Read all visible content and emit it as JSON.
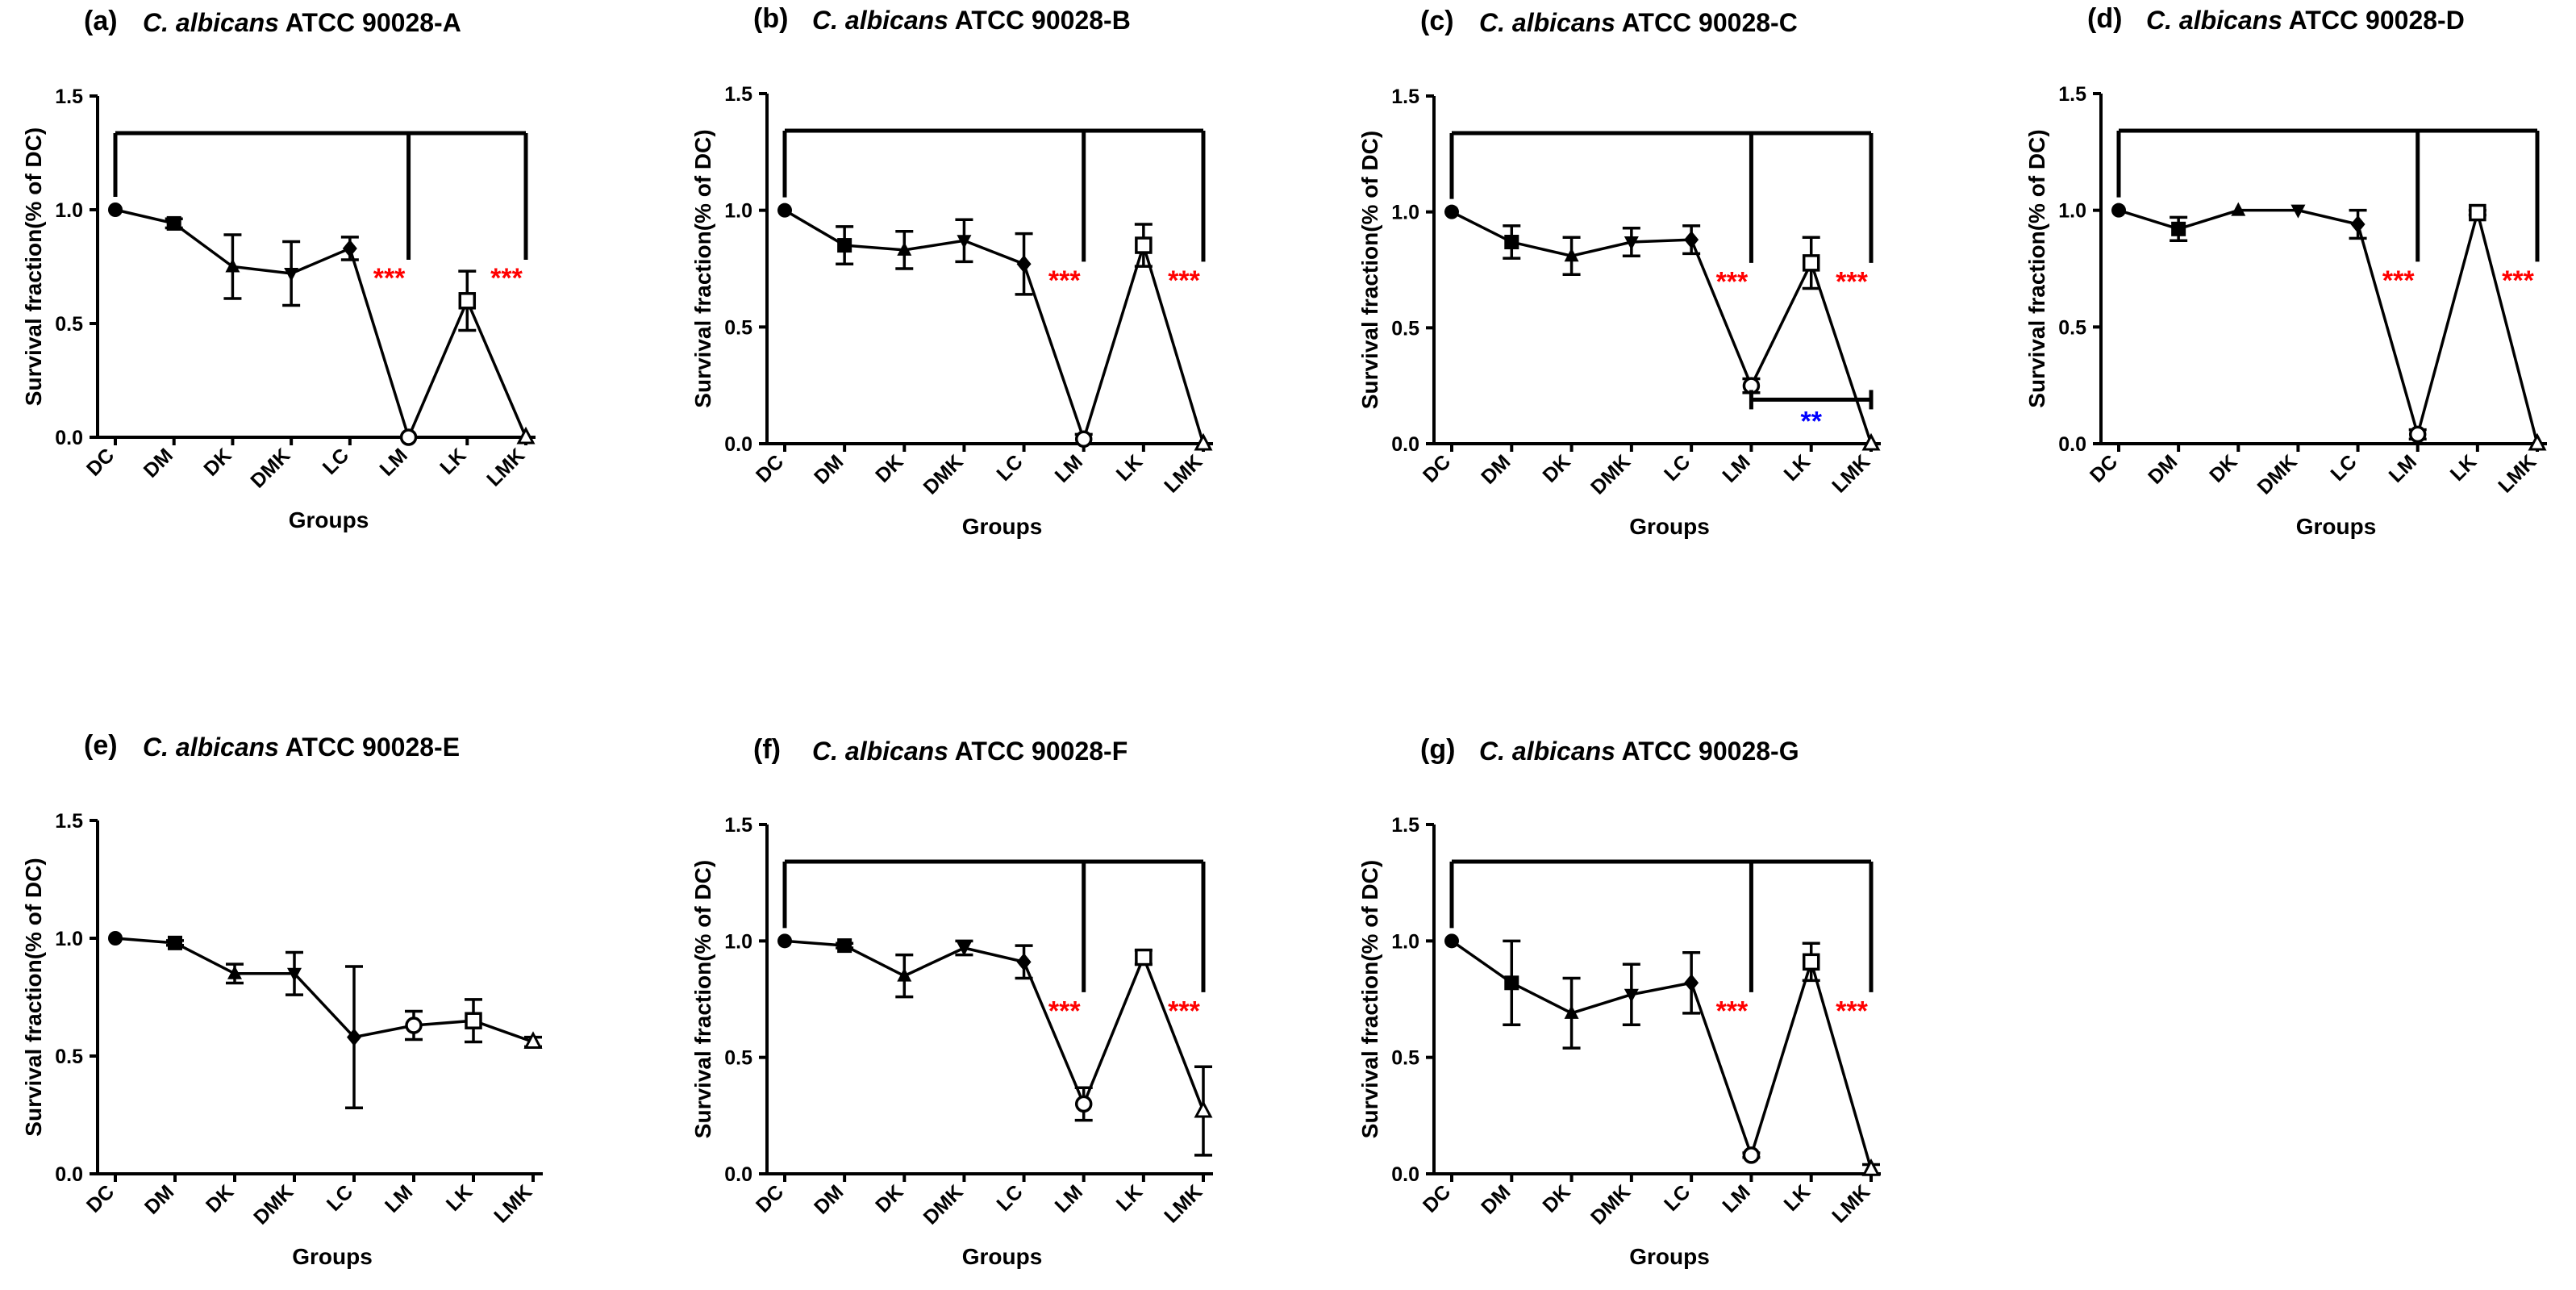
{
  "chart_data": [
    {
      "type": "line",
      "panel": "(a)",
      "title_italic": "C. albicans",
      "title_rest": " ATCC 90028-A",
      "xlabel": "Groups",
      "ylabel": "Survival fraction(% of DC)",
      "ylim": [
        0,
        1.5
      ],
      "yticks": [
        "0.0",
        "0.5",
        "1.0",
        "1.5"
      ],
      "categories": [
        "DC",
        "DM",
        "DK",
        "DMK",
        "LC",
        "LM",
        "LK",
        "LMK"
      ],
      "values": [
        1.0,
        0.94,
        0.75,
        0.72,
        0.83,
        0.0,
        0.6,
        0.0
      ],
      "errors": [
        0,
        0.02,
        0.14,
        0.14,
        0.05,
        0,
        0.13,
        0
      ],
      "markers": [
        "circle",
        "square",
        "triangle-up",
        "triangle-down",
        "diamond",
        "circle-open",
        "square-open",
        "triangle-up-open"
      ],
      "brackets": [
        {
          "from": "DC",
          "to": "LM",
          "label": "***"
        },
        {
          "from": "DC",
          "to": "LMK",
          "label": "***"
        }
      ],
      "sig_color": "#ff0000"
    },
    {
      "type": "line",
      "panel": "(b)",
      "title_italic": "C. albicans",
      "title_rest": " ATCC 90028-B",
      "xlabel": "Groups",
      "ylabel": "Survival fraction(% of DC)",
      "ylim": [
        0,
        1.5
      ],
      "yticks": [
        "0.0",
        "0.5",
        "1.0",
        "1.5"
      ],
      "categories": [
        "DC",
        "DM",
        "DK",
        "DMK",
        "LC",
        "LM",
        "LK",
        "LMK"
      ],
      "values": [
        1.0,
        0.85,
        0.83,
        0.87,
        0.77,
        0.02,
        0.85,
        0.0
      ],
      "errors": [
        0,
        0.08,
        0.08,
        0.09,
        0.13,
        0.02,
        0.09,
        0
      ],
      "markers": [
        "circle",
        "square",
        "triangle-up",
        "triangle-down",
        "diamond",
        "circle-open",
        "square-open",
        "triangle-up-open"
      ],
      "brackets": [
        {
          "from": "DC",
          "to": "LM",
          "label": "***"
        },
        {
          "from": "DC",
          "to": "LMK",
          "label": "***"
        }
      ],
      "sig_color": "#ff0000"
    },
    {
      "type": "line",
      "panel": "(c)",
      "title_italic": "C. albicans",
      "title_rest": " ATCC 90028-C",
      "xlabel": "Groups",
      "ylabel": "Survival fraction(% of DC)",
      "ylim": [
        0,
        1.5
      ],
      "yticks": [
        "0.0",
        "0.5",
        "1.0",
        "1.5"
      ],
      "categories": [
        "DC",
        "DM",
        "DK",
        "DMK",
        "LC",
        "LM",
        "LK",
        "LMK"
      ],
      "values": [
        1.0,
        0.87,
        0.81,
        0.87,
        0.88,
        0.25,
        0.78,
        0.0
      ],
      "errors": [
        0,
        0.07,
        0.08,
        0.06,
        0.06,
        0.03,
        0.11,
        0
      ],
      "markers": [
        "circle",
        "square",
        "triangle-up",
        "triangle-down",
        "diamond",
        "circle-open",
        "square-open",
        "triangle-up-open"
      ],
      "brackets": [
        {
          "from": "DC",
          "to": "LM",
          "label": "***"
        },
        {
          "from": "DC",
          "to": "LMK",
          "label": "***"
        }
      ],
      "extra_bracket": {
        "from": "LM",
        "to": "LMK",
        "y": 0.19,
        "label": "**",
        "color": "#0000ff"
      },
      "sig_color": "#ff0000"
    },
    {
      "type": "line",
      "panel": "(d)",
      "title_italic": "C. albicans",
      "title_rest": " ATCC 90028-D",
      "xlabel": "Groups",
      "ylabel": "Survival fraction(% of DC)",
      "ylim": [
        0,
        1.5
      ],
      "yticks": [
        "0.0",
        "0.5",
        "1.0",
        "1.5"
      ],
      "categories": [
        "DC",
        "DM",
        "DK",
        "DMK",
        "LC",
        "LM",
        "LK",
        "LMK"
      ],
      "values": [
        1.0,
        0.92,
        1.0,
        1.0,
        0.94,
        0.04,
        0.99,
        0.0
      ],
      "errors": [
        0,
        0.05,
        0,
        0,
        0.06,
        0.02,
        0.01,
        0
      ],
      "markers": [
        "circle",
        "square",
        "triangle-up",
        "triangle-down",
        "diamond",
        "circle-open",
        "square-open",
        "triangle-up-open"
      ],
      "brackets": [
        {
          "from": "DC",
          "to": "LM",
          "label": "***"
        },
        {
          "from": "DC",
          "to": "LMK",
          "label": "***"
        }
      ],
      "sig_color": "#ff0000"
    },
    {
      "type": "line",
      "panel": "(e)",
      "title_italic": "C. albicans",
      "title_rest": " ATCC 90028-E",
      "xlabel": "Groups",
      "ylabel": "Survival fraction(% of DC)",
      "ylim": [
        0,
        1.5
      ],
      "yticks": [
        "0.0",
        "0.5",
        "1.0",
        "1.5"
      ],
      "categories": [
        "DC",
        "DM",
        "DK",
        "DMK",
        "LC",
        "LM",
        "LK",
        "LMK"
      ],
      "values": [
        1.0,
        0.98,
        0.85,
        0.85,
        0.58,
        0.63,
        0.65,
        0.56
      ],
      "errors": [
        0,
        0.01,
        0.04,
        0.09,
        0.3,
        0.06,
        0.09,
        0.02
      ],
      "markers": [
        "circle",
        "square",
        "triangle-up",
        "triangle-down",
        "diamond",
        "circle-open",
        "square-open",
        "triangle-up-open"
      ],
      "brackets": [],
      "sig_color": "#ff0000"
    },
    {
      "type": "line",
      "panel": "(f)",
      "title_italic": "C. albicans",
      "title_rest": " ATCC 90028-F",
      "xlabel": "Groups",
      "ylabel": "Survival fraction(% of DC)",
      "ylim": [
        0,
        1.5
      ],
      "yticks": [
        "0.0",
        "0.5",
        "1.0",
        "1.5"
      ],
      "categories": [
        "DC",
        "DM",
        "DK",
        "DMK",
        "LC",
        "LM",
        "LK",
        "LMK"
      ],
      "values": [
        1.0,
        0.98,
        0.85,
        0.97,
        0.91,
        0.3,
        0.93,
        0.27
      ],
      "errors": [
        0,
        0.01,
        0.09,
        0.03,
        0.07,
        0.07,
        0.03,
        0.19
      ],
      "markers": [
        "circle",
        "square",
        "triangle-up",
        "triangle-down",
        "diamond",
        "circle-open",
        "square-open",
        "triangle-up-open"
      ],
      "brackets": [
        {
          "from": "DC",
          "to": "LM",
          "label": "***"
        },
        {
          "from": "DC",
          "to": "LMK",
          "label": "***"
        }
      ],
      "sig_color": "#ff0000"
    },
    {
      "type": "line",
      "panel": "(g)",
      "title_italic": "C. albicans",
      "title_rest": " ATCC 90028-G",
      "xlabel": "Groups",
      "ylabel": "Survival fraction(% of DC)",
      "ylim": [
        0,
        1.5
      ],
      "yticks": [
        "0.0",
        "0.5",
        "1.0",
        "1.5"
      ],
      "categories": [
        "DC",
        "DM",
        "DK",
        "DMK",
        "LC",
        "LM",
        "LK",
        "LMK"
      ],
      "values": [
        1.0,
        0.82,
        0.69,
        0.77,
        0.82,
        0.08,
        0.91,
        0.02
      ],
      "errors": [
        0,
        0.18,
        0.15,
        0.13,
        0.13,
        0.01,
        0.08,
        0.02
      ],
      "markers": [
        "circle",
        "square",
        "triangle-up",
        "triangle-down",
        "diamond",
        "circle-open",
        "square-open",
        "triangle-up-open"
      ],
      "brackets": [
        {
          "from": "DC",
          "to": "LM",
          "label": "***"
        },
        {
          "from": "DC",
          "to": "LMK",
          "label": "***"
        }
      ],
      "sig_color": "#ff0000"
    }
  ]
}
